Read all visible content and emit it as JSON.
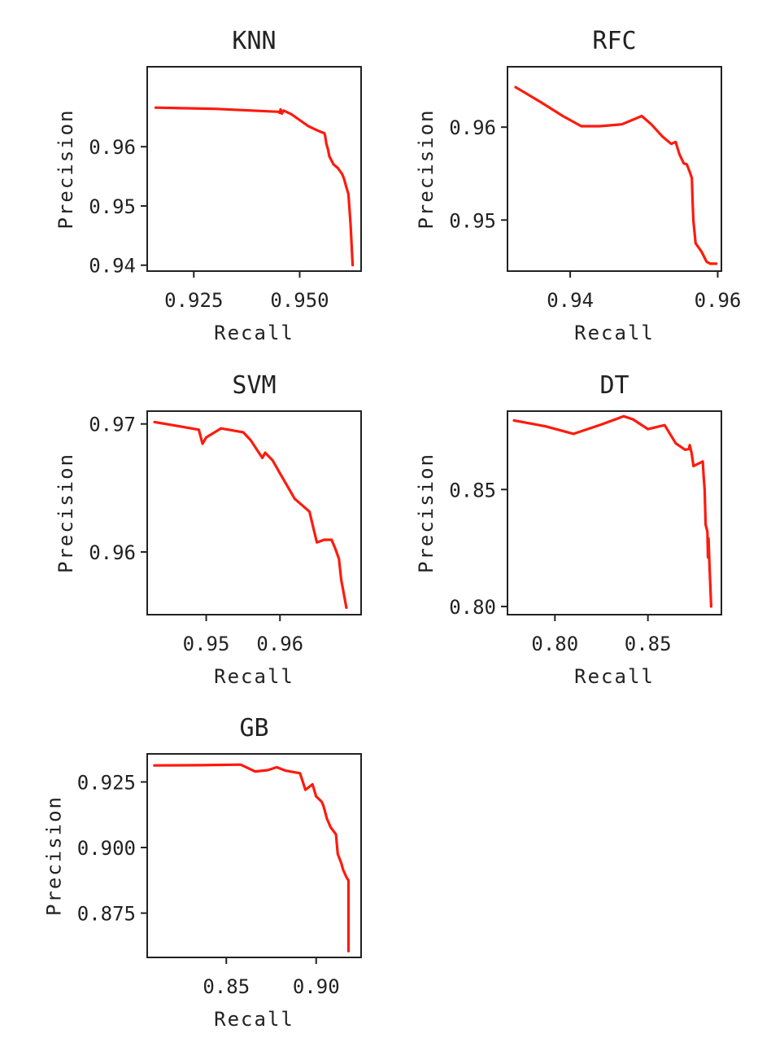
{
  "chart_data": [
    {
      "type": "line",
      "title": "KNN",
      "xlabel": "Recall",
      "ylabel": "Precision",
      "xlim": [
        0.914,
        0.9645
      ],
      "ylim": [
        0.939,
        0.9735
      ],
      "xticks": [
        0.925,
        0.95
      ],
      "xtick_labels": [
        "0.925",
        "0.950"
      ],
      "yticks": [
        0.94,
        0.95,
        0.96
      ],
      "ytick_labels": [
        "0.94",
        "0.95",
        "0.96"
      ],
      "grid": false,
      "series": [
        {
          "color": "#ff1a0d",
          "x": [
            0.916,
            0.93,
            0.945,
            0.9453,
            0.9455,
            0.9458,
            0.9462,
            0.948,
            0.95,
            0.952,
            0.954,
            0.955,
            0.9558,
            0.956,
            0.9563,
            0.9567,
            0.957,
            0.958,
            0.959,
            0.9595,
            0.96,
            0.9605,
            0.961,
            0.9615,
            0.962,
            0.9625
          ],
          "y": [
            0.9666,
            0.9664,
            0.9659,
            0.9657,
            0.9663,
            0.9656,
            0.9661,
            0.9655,
            0.9645,
            0.9635,
            0.9628,
            0.9625,
            0.9623,
            0.9619,
            0.9605,
            0.9595,
            0.9584,
            0.957,
            0.9564,
            0.9559,
            0.9554,
            0.9545,
            0.9532,
            0.952,
            0.947,
            0.94
          ]
        }
      ]
    },
    {
      "type": "line",
      "title": "RFC",
      "xlabel": "Recall",
      "ylabel": "Precision",
      "xlim": [
        0.9315,
        0.9605
      ],
      "ylim": [
        0.9445,
        0.9665
      ],
      "xticks": [
        0.94,
        0.96
      ],
      "xtick_labels": [
        "0.94",
        "0.96"
      ],
      "yticks": [
        0.95,
        0.96
      ],
      "ytick_labels": [
        "0.95",
        "0.96"
      ],
      "grid": false,
      "series": [
        {
          "color": "#ff1a0d",
          "x": [
            0.9326,
            0.936,
            0.939,
            0.9415,
            0.944,
            0.947,
            0.9497,
            0.951,
            0.9525,
            0.9537,
            0.9543,
            0.9548,
            0.9554,
            0.9558,
            0.9562,
            0.9565,
            0.9566,
            0.9567,
            0.957,
            0.9578,
            0.9585,
            0.959,
            0.9598
          ],
          "y": [
            0.9643,
            0.9627,
            0.9612,
            0.9601,
            0.9601,
            0.9603,
            0.9612,
            0.9603,
            0.959,
            0.9582,
            0.9584,
            0.9571,
            0.9561,
            0.956,
            0.9552,
            0.9545,
            0.952,
            0.95,
            0.9475,
            0.9466,
            0.9455,
            0.9453,
            0.9453
          ]
        }
      ]
    },
    {
      "type": "line",
      "title": "SVM",
      "xlabel": "Recall",
      "ylabel": "Precision",
      "xlim": [
        0.942,
        0.971
      ],
      "ylim": [
        0.9551,
        0.971
      ],
      "xticks": [
        0.95,
        0.96
      ],
      "xtick_labels": [
        "0.95",
        "0.96"
      ],
      "yticks": [
        0.96,
        0.97
      ],
      "ytick_labels": [
        "0.96",
        "0.97"
      ],
      "grid": false,
      "series": [
        {
          "color": "#ff1a0d",
          "x": [
            0.943,
            0.946,
            0.949,
            0.9495,
            0.95,
            0.952,
            0.955,
            0.956,
            0.9576,
            0.958,
            0.959,
            0.96,
            0.962,
            0.964,
            0.965,
            0.966,
            0.967,
            0.9675,
            0.968,
            0.9683,
            0.969
          ],
          "y": [
            0.97015,
            0.96985,
            0.96955,
            0.96845,
            0.96895,
            0.96965,
            0.96935,
            0.96875,
            0.96735,
            0.96775,
            0.96715,
            0.96615,
            0.96415,
            0.96315,
            0.96075,
            0.96095,
            0.96095,
            0.96025,
            0.95945,
            0.95785,
            0.95565
          ]
        }
      ]
    },
    {
      "type": "line",
      "title": "DT",
      "xlabel": "Recall",
      "ylabel": "Precision",
      "xlim": [
        0.7745,
        0.8895
      ],
      "ylim": [
        0.7965,
        0.8835
      ],
      "xticks": [
        0.8,
        0.85
      ],
      "xtick_labels": [
        "0.80",
        "0.85"
      ],
      "yticks": [
        0.8,
        0.85
      ],
      "ytick_labels": [
        "0.80",
        "0.85"
      ],
      "grid": false,
      "series": [
        {
          "color": "#ff1a0d",
          "x": [
            0.778,
            0.795,
            0.81,
            0.825,
            0.837,
            0.842,
            0.85,
            0.859,
            0.865,
            0.87,
            0.872,
            0.8725,
            0.8735,
            0.8745,
            0.8795,
            0.88,
            0.8805,
            0.881,
            0.882,
            0.8823,
            0.8826,
            0.883,
            0.884
          ],
          "y": [
            0.8795,
            0.877,
            0.8738,
            0.8778,
            0.8813,
            0.88,
            0.8758,
            0.8775,
            0.8697,
            0.867,
            0.8673,
            0.869,
            0.8655,
            0.86,
            0.862,
            0.855,
            0.85,
            0.835,
            0.832,
            0.821,
            0.829,
            0.82,
            0.8
          ]
        }
      ]
    },
    {
      "type": "line",
      "title": "GB",
      "xlabel": "Recall",
      "ylabel": "Precision",
      "xlim": [
        0.806,
        0.925
      ],
      "ylim": [
        0.8581,
        0.9357
      ],
      "xticks": [
        0.85,
        0.9
      ],
      "xtick_labels": [
        "0.85",
        "0.90"
      ],
      "yticks": [
        0.875,
        0.9,
        0.925
      ],
      "ytick_labels": [
        "0.875",
        "0.900",
        "0.925"
      ],
      "grid": false,
      "series": [
        {
          "color": "#ff1a0d",
          "x": [
            0.81,
            0.835,
            0.858,
            0.866,
            0.873,
            0.878,
            0.883,
            0.891,
            0.894,
            0.898,
            0.9,
            0.903,
            0.904,
            0.906,
            0.908,
            0.911,
            0.912,
            0.914,
            0.915,
            0.917,
            0.918,
            0.918
          ],
          "y": [
            0.9313,
            0.9314,
            0.9316,
            0.929,
            0.9295,
            0.9306,
            0.9293,
            0.9283,
            0.922,
            0.9241,
            0.9195,
            0.9175,
            0.916,
            0.911,
            0.9078,
            0.905,
            0.8975,
            0.894,
            0.8915,
            0.8885,
            0.8875,
            0.8605
          ]
        }
      ]
    }
  ]
}
